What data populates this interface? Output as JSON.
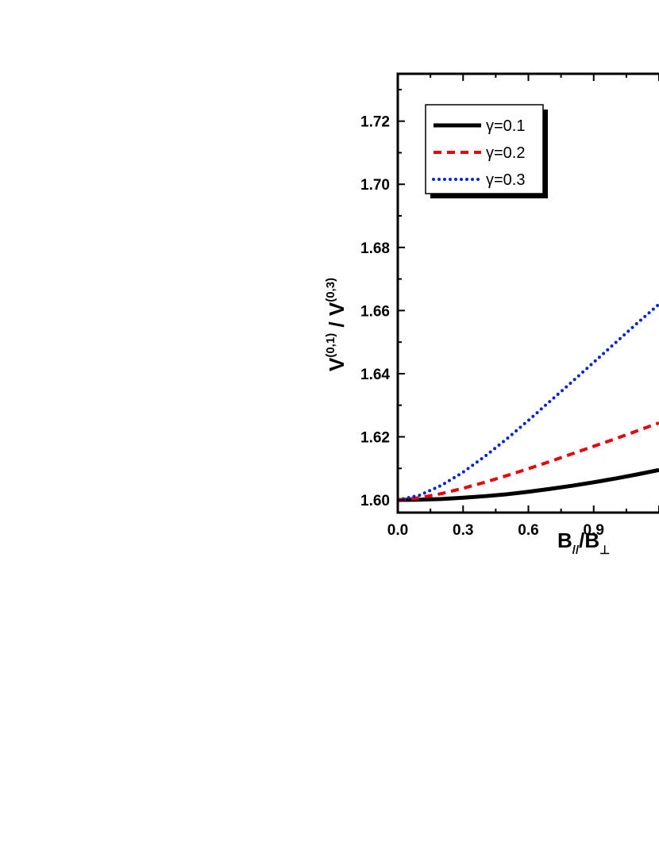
{
  "chart_data": {
    "type": "line",
    "title": "",
    "xlabel": {
      "main": "B",
      "sub1": "//",
      "slash": "/B",
      "sub2": "⊥"
    },
    "ylabel": {
      "v1": "V",
      "sup1": "(0,1)",
      "sep": " / ",
      "v2": "V",
      "sup2": "(0,3)"
    },
    "xlim": [
      0.0,
      1.2
    ],
    "ylim": [
      1.596,
      1.735
    ],
    "xticks": [
      "0.0",
      "0.3",
      "0.6",
      "0.9"
    ],
    "yticks": [
      "1.60",
      "1.62",
      "1.64",
      "1.66",
      "1.68",
      "1.70",
      "1.72"
    ],
    "grid": false,
    "legend_position": "top-left",
    "series": [
      {
        "name": "γ=0.1",
        "color": "#000000",
        "style": "solid",
        "x": [
          0.0,
          0.1,
          0.2,
          0.3,
          0.4,
          0.5,
          0.6,
          0.7,
          0.8,
          0.9,
          1.0,
          1.1,
          1.2
        ],
        "y": [
          1.6,
          1.6001,
          1.6003,
          1.6007,
          1.6012,
          1.6018,
          1.6026,
          1.6035,
          1.6045,
          1.6056,
          1.6068,
          1.6081,
          1.6095
        ]
      },
      {
        "name": "γ=0.2",
        "color": "#e8000b",
        "style": "dashed",
        "x": [
          0.0,
          0.1,
          0.2,
          0.3,
          0.4,
          0.5,
          0.6,
          0.7,
          0.8,
          0.9,
          1.0,
          1.1,
          1.2
        ],
        "y": [
          1.6,
          1.6007,
          1.602,
          1.6037,
          1.6056,
          1.6077,
          1.6099,
          1.6122,
          1.6146,
          1.617,
          1.6194,
          1.6219,
          1.6244
        ]
      },
      {
        "name": "γ=0.3",
        "color": "#0022dd",
        "style": "dotted",
        "x": [
          0.0,
          0.1,
          0.2,
          0.3,
          0.4,
          0.5,
          0.6,
          0.7,
          0.8,
          0.9,
          1.0,
          1.1,
          1.2
        ],
        "y": [
          1.6,
          1.6015,
          1.6046,
          1.6088,
          1.6138,
          1.6193,
          1.6252,
          1.6313,
          1.6374,
          1.6436,
          1.6498,
          1.656,
          1.662
        ]
      }
    ]
  }
}
